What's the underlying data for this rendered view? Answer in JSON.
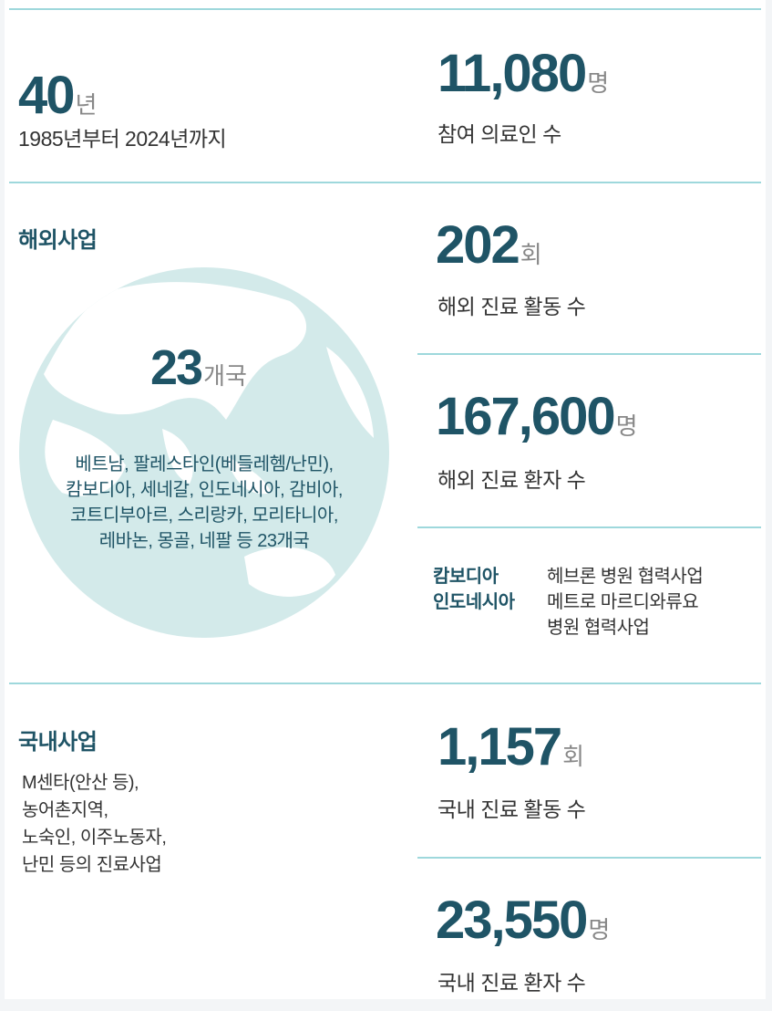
{
  "stats": {
    "years": {
      "value": "40",
      "unit": "년",
      "label": "1985년부터 2024년까지"
    },
    "participants": {
      "value": "11,080",
      "unit": "명",
      "label": "참여 의료인 수"
    },
    "overseas_activities": {
      "value": "202",
      "unit": "회",
      "label": "해외 진료 활동 수"
    },
    "overseas_patients": {
      "value": "167,600",
      "unit": "명",
      "label": "해외 진료 환자 수"
    },
    "domestic_activities": {
      "value": "1,157",
      "unit": "회",
      "label": "국내 진료 활동 수"
    },
    "domestic_patients": {
      "value": "23,550",
      "unit": "명",
      "label": "국내 진료 환자 수"
    }
  },
  "overseas": {
    "title": "해외사업",
    "countries_count": "23",
    "countries_unit": "개국",
    "countries_lines": [
      "베트남, 팔레스타인(베들레헴/난민),",
      "캄보디아, 세네갈, 인도네시아, 감비아,",
      "코트디부아르, 스리랑카, 모리타니아,",
      "레바논, 몽골, 네팔 등 23개국"
    ],
    "partners": {
      "countries": [
        "캄보디아",
        "인도네시아"
      ],
      "projects": [
        "헤브론 병원 협력사업",
        "메트로 마르디와류요",
        "병원 협력사업"
      ]
    }
  },
  "domestic": {
    "title": "국내사업",
    "lines": [
      "M센타(안산 등),",
      "농어촌지역,",
      "노숙인, 이주노동자,",
      "난민 등의 진료사업"
    ]
  },
  "colors": {
    "accent": "#1f5466",
    "divider": "#9ed8dc",
    "globe": "#d3eaea"
  }
}
